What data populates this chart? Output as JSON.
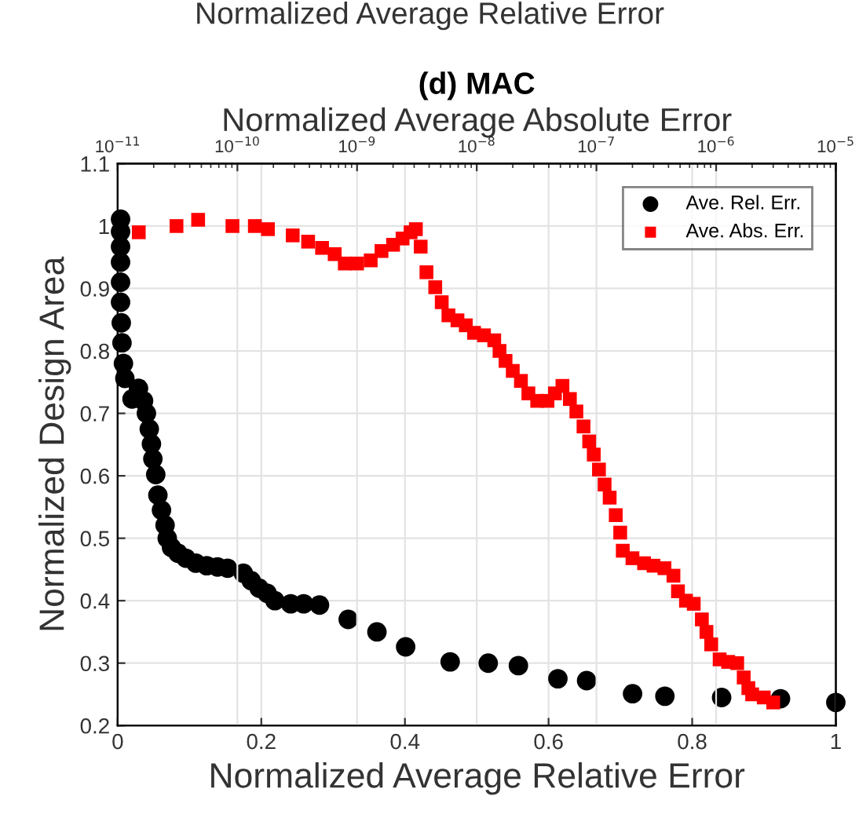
{
  "chart_data": {
    "type": "scatter",
    "title": "(d) MAC",
    "annotations": [
      "Normalized Average Relative Error"
    ],
    "xlabel": "Normalized Average Relative Error",
    "x2label": "Normalized Average Absolute Error",
    "ylabel": "Normalized Design Area",
    "xlim": [
      0,
      1
    ],
    "xticks": [
      0,
      0.2,
      0.4,
      0.6,
      0.8,
      1
    ],
    "x2lim": [
      1e-11,
      1e-05
    ],
    "x2ticks": [
      {
        "value": 1e-11,
        "label": "10$^{−11}$"
      },
      {
        "value": 1e-10,
        "label": "10$^{−10}$"
      },
      {
        "value": 1e-09,
        "label": "10$^{−9}$"
      },
      {
        "value": 1e-08,
        "label": "10$^{−8}$"
      },
      {
        "value": 1e-07,
        "label": "10$^{−7}$"
      },
      {
        "value": 1e-06,
        "label": "10$^{−6}$"
      },
      {
        "value": 1e-05,
        "label": "10$^{−5}$"
      }
    ],
    "ylim": [
      0.2,
      1.1
    ],
    "yticks": [
      0.2,
      0.3,
      0.4,
      0.5,
      0.6,
      0.7,
      0.8,
      0.9,
      1,
      1.1
    ],
    "log": "x2",
    "grid": true,
    "legend": "top right",
    "series": [
      {
        "name": "Ave. Rel. Err.",
        "color": "#000000",
        "marker": "circle",
        "x": [
          0.004,
          0.004,
          0.004,
          0.004,
          0.004,
          0.004,
          0.005,
          0.006,
          0.008,
          0.01,
          0.013,
          0.02,
          0.029,
          0.036,
          0.04,
          0.044,
          0.047,
          0.049,
          0.053,
          0.056,
          0.061,
          0.066,
          0.069,
          0.075,
          0.084,
          0.095,
          0.109,
          0.124,
          0.139,
          0.153,
          0.164,
          0.175,
          0.186,
          0.197,
          0.208,
          0.219,
          0.241,
          0.259,
          0.281,
          0.321,
          0.361,
          0.401,
          0.463,
          0.516,
          0.558,
          0.613,
          0.653,
          0.717,
          0.762,
          0.841,
          0.923,
          1.0
        ],
        "values": [
          1.011,
          0.991,
          0.967,
          0.942,
          0.91,
          0.878,
          0.845,
          0.813,
          0.78,
          0.756,
          null,
          0.723,
          0.74,
          0.72,
          0.7,
          0.675,
          0.651,
          0.627,
          0.602,
          0.569,
          0.545,
          0.521,
          0.5,
          0.485,
          0.476,
          0.468,
          0.46,
          0.456,
          0.454,
          0.452,
          null,
          0.444,
          0.432,
          0.42,
          0.412,
          0.4,
          0.395,
          0.395,
          0.393,
          0.37,
          0.35,
          0.326,
          0.302,
          0.3,
          0.296,
          0.275,
          0.272,
          0.251,
          0.247,
          0.245,
          0.243,
          0.237
        ]
      },
      {
        "name": "Ave. Abs. Err.",
        "color": "#ff0000",
        "marker": "square",
        "axis": "x2",
        "x": [
          1.5e-11,
          3.1e-11,
          4.7e-11,
          9.1e-11,
          1.4e-10,
          1.8e-10,
          2.9e-10,
          3.9e-10,
          5.1e-10,
          6.5e-10,
          7.9e-10,
          1e-09,
          1.3e-09,
          1.6e-09,
          2e-09,
          2.4e-09,
          2.8e-09,
          3.1e-09,
          3.4e-09,
          3.8e-09,
          4.5e-09,
          5.1e-09,
          5.8e-09,
          6.9e-09,
          8.1e-09,
          9.5e-09,
          1.15e-08,
          1.4e-08,
          1.55e-08,
          1.74e-08,
          2e-08,
          2.34e-08,
          2.7e-08,
          3.2e-08,
          3.9e-08,
          4.5e-08,
          5.2e-08,
          6e-08,
          6.8e-08,
          7.8e-08,
          8.7e-08,
          9.5e-08,
          1.05e-07,
          1.17e-07,
          1.29e-07,
          1.45e-07,
          1.58e-07,
          1.66e-07,
          2e-07,
          2.5e-07,
          3e-07,
          3.7e-07,
          4.4e-07,
          4.8e-07,
          5.6e-07,
          6.5e-07,
          7.6e-07,
          8.3e-07,
          9.1e-07,
          1.07e-06,
          1.26e-06,
          1.5e-06,
          1.7e-06,
          1.86e-06,
          2e-06,
          2.5e-06,
          3e-06
        ],
        "values": [
          0.99,
          1.0,
          1.01,
          1.0,
          1.0,
          0.995,
          0.985,
          0.975,
          0.965,
          0.955,
          0.94,
          0.94,
          0.945,
          0.96,
          0.97,
          0.98,
          0.99,
          0.995,
          0.967,
          0.926,
          0.902,
          0.878,
          0.857,
          0.849,
          0.841,
          0.829,
          0.825,
          0.817,
          0.8,
          0.784,
          0.768,
          0.752,
          0.732,
          0.72,
          0.72,
          0.732,
          0.744,
          0.723,
          0.703,
          0.679,
          0.655,
          0.634,
          0.61,
          0.586,
          0.565,
          0.537,
          0.509,
          0.48,
          0.468,
          0.46,
          0.456,
          0.452,
          0.44,
          0.415,
          0.4,
          0.395,
          0.37,
          0.35,
          0.33,
          0.306,
          0.302,
          0.3,
          0.277,
          0.26,
          0.25,
          0.245,
          0.237
        ]
      }
    ]
  }
}
